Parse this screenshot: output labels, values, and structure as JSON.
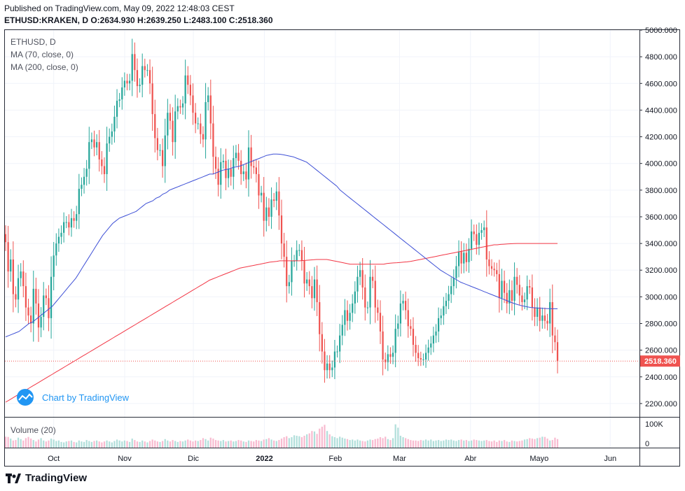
{
  "header": {
    "published": "Published on TradingView.com, May 09, 2022 12:48:03 CEST",
    "quote": "ETHUSD:KRAKEN, D  O:2634.930  H:2639.250  L:2483.100  C:2518.360"
  },
  "legend": {
    "symbol": "ETHUSD, D",
    "ma70": "MA (70, close, 0)",
    "ma200": "MA (200, close, 0)",
    "volume": "Volume (20)"
  },
  "branding": {
    "chart_by": "Chart by TradingView",
    "footer": "TradingView"
  },
  "colors": {
    "up": "#26a69a",
    "down": "#ef5350",
    "ma70": "#3f51d6",
    "ma200": "#f23645",
    "last_price_bg": "#ef5350"
  },
  "chart_data": {
    "type": "candlestick",
    "price_axis": {
      "min": 2100,
      "max": 5000,
      "ticks": [
        "5000.000",
        "4800.000",
        "4600.000",
        "4400.000",
        "4200.000",
        "4000.000",
        "3800.000",
        "3600.000",
        "3400.000",
        "3200.000",
        "3000.000",
        "2800.000",
        "2600.000",
        "2400.000",
        "2200.000"
      ]
    },
    "volume_axis": {
      "ticks": [
        "100K",
        "0"
      ],
      "max": 100
    },
    "x_axis": {
      "ticks": [
        {
          "label": "Oct",
          "date": "2021-10-01"
        },
        {
          "label": "Nov",
          "date": "2021-11-01"
        },
        {
          "label": "Dic",
          "date": "2021-12-01"
        },
        {
          "label": "2022",
          "date": "2022-01-01",
          "bold": true
        },
        {
          "label": "Feb",
          "date": "2022-02-01"
        },
        {
          "label": "Mar",
          "date": "2022-03-01"
        },
        {
          "label": "Abr",
          "date": "2022-04-01"
        },
        {
          "label": "Mayo",
          "date": "2022-05-01"
        },
        {
          "label": "Jun",
          "date": "2022-06-01"
        }
      ]
    },
    "last_price": "2518.360",
    "first_date": "2021-09-10",
    "last_date": "2022-05-09",
    "closes": [
      3410,
      3190,
      3280,
      3020,
      2980,
      3140,
      3190,
      3080,
      2920,
      2860,
      2800,
      3060,
      2950,
      2770,
      2850,
      3010,
      2990,
      2840,
      3150,
      3310,
      3400,
      3450,
      3480,
      3560,
      3560,
      3520,
      3590,
      3570,
      3620,
      3810,
      3840,
      3900,
      3960,
      4160,
      4180,
      4120,
      4160,
      4030,
      3980,
      3920,
      4150,
      4200,
      4240,
      4350,
      4470,
      4480,
      4570,
      4620,
      4600,
      4620,
      4820,
      4700,
      4580,
      4590,
      4730,
      4700,
      4700,
      4600,
      4370,
      4190,
      4100,
      4100,
      3980,
      4210,
      4380,
      4320,
      4160,
      4390,
      4430,
      4420,
      4450,
      4660,
      4590,
      4510,
      4380,
      4300,
      4300,
      4220,
      4180,
      4460,
      4510,
      4300,
      4050,
      3960,
      3840,
      4010,
      4020,
      3890,
      3960,
      3900,
      4040,
      4080,
      4020,
      3920,
      3940,
      3880,
      4120,
      3980,
      3970,
      3920,
      3760,
      3780,
      3570,
      3670,
      3600,
      3730,
      3720,
      3790,
      3610,
      3400,
      3300,
      3080,
      3110,
      3270,
      3270,
      3350,
      3350,
      3270,
      3100,
      3130,
      3080,
      2990,
      3130,
      2960,
      2720,
      2590,
      2450,
      2500,
      2450,
      2470,
      2590,
      2590,
      2710,
      2790,
      2900,
      2820,
      2880,
      2950,
      3040,
      3150,
      3200,
      3070,
      2920,
      2920,
      3150,
      3120,
      2920,
      2880,
      2740,
      2530,
      2510,
      2570,
      2550,
      2580,
      2760,
      2800,
      2950,
      2970,
      2900,
      2780,
      2760,
      2640,
      2580,
      2540,
      2530,
      2530,
      2580,
      2620,
      2650,
      2710,
      2740,
      2840,
      2860,
      2930,
      2970,
      3020,
      3080,
      3140,
      3230,
      3340,
      3250,
      3330,
      3260,
      3360,
      3490,
      3470,
      3390,
      3480,
      3500,
      3520,
      3280,
      3230,
      3210,
      3200,
      3170,
      2990,
      3120,
      3030,
      2950,
      3050,
      2970,
      3150,
      3090,
      3010,
      2960,
      2980,
      3080,
      3070,
      2920,
      2850,
      2920,
      2820,
      2860,
      2820,
      2800,
      2960,
      2710,
      2660,
      2520
    ],
    "ma70": [
      2700,
      2710,
      2720,
      2730,
      2740,
      2760,
      2780,
      2800,
      2810,
      2830,
      2850,
      2870,
      2890,
      2910,
      2930,
      2960,
      2990,
      3020,
      3050,
      3080,
      3110,
      3140,
      3180,
      3220,
      3260,
      3300,
      3340,
      3380,
      3420,
      3460,
      3490,
      3520,
      3550,
      3570,
      3590,
      3600,
      3610,
      3620,
      3630,
      3640,
      3660,
      3680,
      3700,
      3710,
      3720,
      3740,
      3750,
      3770,
      3780,
      3800,
      3810,
      3820,
      3830,
      3840,
      3850,
      3860,
      3870,
      3880,
      3890,
      3900,
      3910,
      3920,
      3920,
      3930,
      3940,
      3950,
      3955,
      3960,
      3970,
      3975,
      3980,
      3990,
      4000,
      4010,
      4020,
      4030,
      4040,
      4050,
      4060,
      4065,
      4070,
      4070,
      4069,
      4065,
      4060,
      4055,
      4050,
      4040,
      4030,
      4020,
      4010,
      3990,
      3970,
      3950,
      3930,
      3910,
      3890,
      3870,
      3850,
      3830,
      3800,
      3780,
      3760,
      3740,
      3720,
      3700,
      3680,
      3660,
      3640,
      3620,
      3600,
      3580,
      3560,
      3540,
      3520,
      3500,
      3480,
      3460,
      3440,
      3420,
      3400,
      3380,
      3360,
      3340,
      3320,
      3300,
      3280,
      3260,
      3240,
      3220,
      3200,
      3185,
      3170,
      3155,
      3140,
      3125,
      3110,
      3100,
      3090,
      3080,
      3070,
      3060,
      3050,
      3040,
      3030,
      3020,
      3010,
      3000,
      2990,
      2980,
      2970,
      2960,
      2950,
      2942,
      2935,
      2930,
      2925,
      2920,
      2918,
      2916,
      2915,
      2913,
      2912,
      2911,
      2910,
      2910
    ],
    "ma200": [
      2210,
      2225,
      2240,
      2255,
      2270,
      2285,
      2300,
      2315,
      2330,
      2345,
      2360,
      2375,
      2390,
      2405,
      2420,
      2435,
      2450,
      2465,
      2480,
      2495,
      2510,
      2525,
      2540,
      2555,
      2570,
      2585,
      2600,
      2615,
      2630,
      2645,
      2660,
      2675,
      2690,
      2705,
      2720,
      2735,
      2750,
      2765,
      2780,
      2795,
      2810,
      2825,
      2840,
      2855,
      2870,
      2885,
      2900,
      2915,
      2930,
      2945,
      2960,
      2975,
      2990,
      3005,
      3020,
      3035,
      3050,
      3065,
      3080,
      3095,
      3110,
      3125,
      3135,
      3145,
      3155,
      3165,
      3175,
      3185,
      3195,
      3205,
      3215,
      3220,
      3225,
      3230,
      3235,
      3240,
      3245,
      3250,
      3255,
      3260,
      3263,
      3266,
      3270,
      3270,
      3270,
      3270,
      3270,
      3270,
      3270,
      3272,
      3274,
      3276,
      3278,
      3280,
      3280,
      3280,
      3280,
      3275,
      3270,
      3265,
      3260,
      3255,
      3250,
      3245,
      3245,
      3245,
      3245,
      3245,
      3245,
      3245,
      3245,
      3245,
      3245,
      3245,
      3250,
      3252,
      3254,
      3256,
      3258,
      3260,
      3262,
      3266,
      3270,
      3275,
      3280,
      3285,
      3290,
      3295,
      3300,
      3305,
      3310,
      3315,
      3320,
      3325,
      3330,
      3335,
      3340,
      3345,
      3350,
      3355,
      3360,
      3365,
      3370,
      3375,
      3380,
      3385,
      3390,
      3390,
      3393,
      3395,
      3397,
      3398,
      3399,
      3400,
      3400,
      3400,
      3400,
      3400,
      3400,
      3400,
      3400,
      3400,
      3400,
      3400,
      3400,
      3400
    ],
    "volume": [
      46,
      45,
      38,
      30,
      32,
      42,
      36,
      30,
      40,
      45,
      38,
      32,
      26,
      34,
      40,
      30,
      26,
      30,
      38,
      34,
      28,
      30,
      24,
      22,
      26,
      28,
      30,
      24,
      22,
      30,
      26,
      24,
      32,
      28,
      24,
      28,
      30,
      26,
      22,
      26,
      30,
      26,
      22,
      28,
      34,
      30,
      26,
      30,
      28,
      24,
      38,
      32,
      26,
      24,
      30,
      26,
      22,
      28,
      34,
      30,
      26,
      24,
      28,
      36,
      30,
      26,
      32,
      28,
      24,
      28,
      26,
      30,
      34,
      30,
      26,
      30,
      28,
      32,
      40,
      36,
      30,
      42,
      38,
      32,
      30,
      28,
      32,
      26,
      28,
      30,
      26,
      28,
      32,
      30,
      26,
      24,
      30,
      28,
      26,
      32,
      30,
      28,
      34,
      36,
      40,
      34,
      30,
      28,
      32,
      38,
      44,
      48,
      40,
      44,
      52,
      50,
      48,
      44,
      50,
      56,
      60,
      70,
      68,
      58,
      80,
      88,
      96,
      70,
      56,
      48,
      44,
      40,
      46,
      42,
      38,
      36,
      32,
      34,
      30,
      34,
      30,
      28,
      26,
      30,
      34,
      32,
      36,
      38,
      44,
      40,
      46,
      36,
      32,
      40,
      98,
      84,
      50,
      44,
      40,
      36,
      32,
      30,
      30,
      28,
      32,
      30,
      34,
      30,
      34,
      28,
      30,
      32,
      28,
      30,
      34,
      32,
      34,
      30,
      28,
      32,
      34,
      30,
      32,
      28,
      30,
      34,
      32,
      30,
      28,
      30,
      32,
      28,
      26,
      30,
      24,
      30,
      28,
      32,
      26,
      24,
      30,
      28,
      26,
      28,
      30,
      34,
      36,
      40,
      38,
      36,
      40,
      42
    ]
  }
}
